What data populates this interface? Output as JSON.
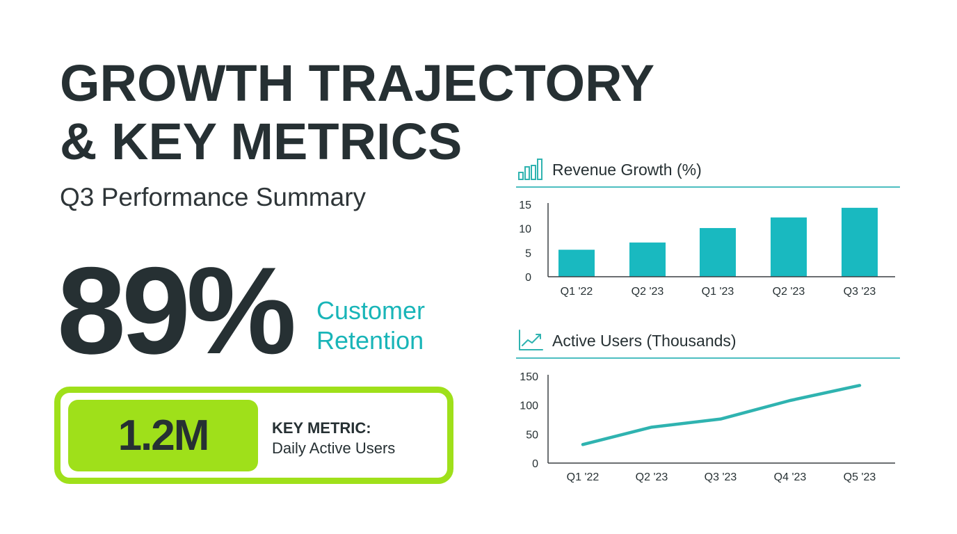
{
  "header": {
    "title_lines": [
      "GROWTH TRAJECTORY",
      "& KEY METRICS"
    ],
    "subtitle": "Q3 Performance Summary"
  },
  "hero_stat": {
    "value": "89%",
    "label_lines": [
      "Customer",
      "Retention"
    ],
    "label_color": "#19b5b8"
  },
  "key_metric": {
    "value": "1.2M",
    "heading": "KEY METRIC:",
    "description": "Daily Active Users",
    "accent_color": "#9fe01a"
  },
  "colors": {
    "text": "#263033",
    "teal": "#19b9c0",
    "line": "#2fb3b0",
    "lime": "#9fe01a"
  },
  "chart_data": [
    {
      "type": "bar",
      "title": "Revenue Growth (%)",
      "icon": "bar-chart-icon",
      "categories": [
        "Q1 '22",
        "Q2 '23",
        "Q1 '23",
        "Q2 '23",
        "Q3 '23"
      ],
      "values": [
        5.6,
        7.1,
        10.1,
        12.3,
        14.3
      ],
      "xlabel": "",
      "ylabel": "",
      "yticks": [
        0,
        5,
        10,
        15
      ],
      "ylim": [
        0,
        15
      ],
      "grid": false,
      "legend": null,
      "color": "#19b9c0"
    },
    {
      "type": "line",
      "title": "Active Users (Thousands)",
      "icon": "line-chart-icon",
      "categories": [
        "Q1 '22",
        "Q2 '23",
        "Q3 '23",
        "Q4 '23",
        "Q5 '23"
      ],
      "values": [
        32,
        62,
        76,
        108,
        134
      ],
      "xlabel": "",
      "ylabel": "",
      "yticks": [
        0,
        50,
        100,
        150
      ],
      "ylim": [
        0,
        150
      ],
      "grid": false,
      "legend": null,
      "color": "#2fb3b0"
    }
  ]
}
